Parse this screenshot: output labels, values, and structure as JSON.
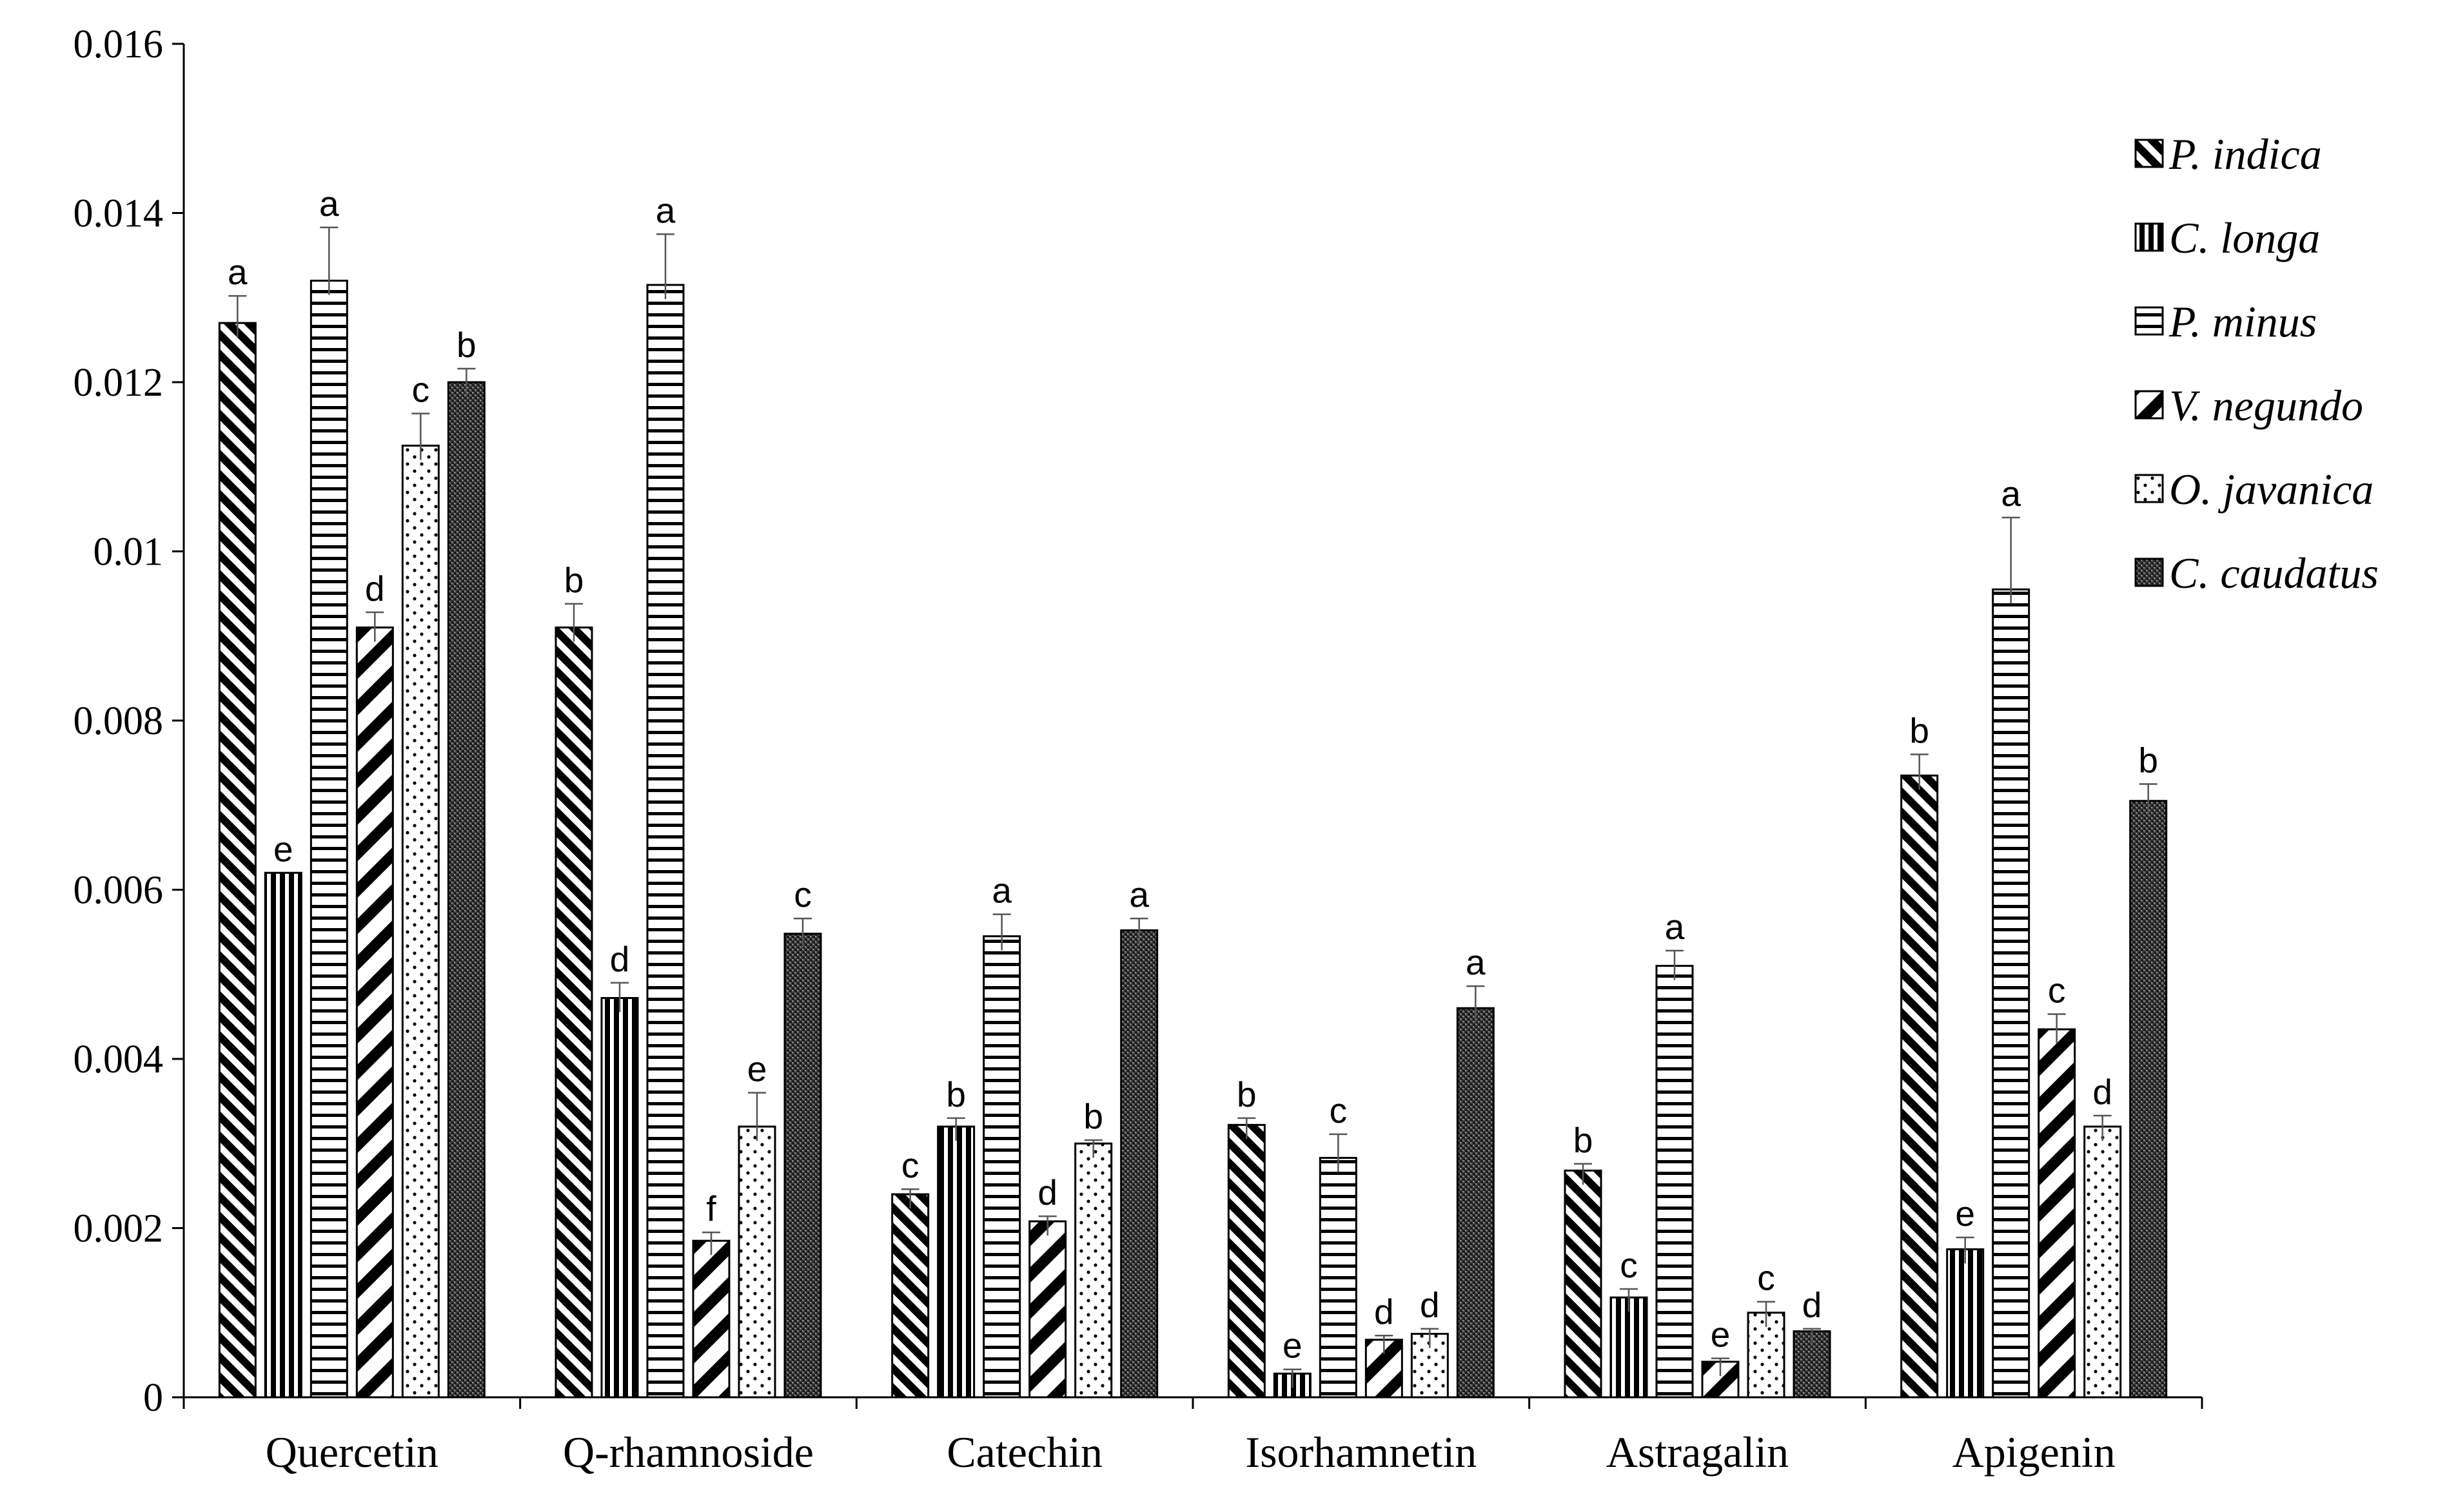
{
  "chart_data": {
    "type": "bar",
    "title": "",
    "xlabel": "",
    "ylabel": "",
    "ylim": [
      0,
      0.016
    ],
    "yticks": [
      "0",
      "0.002",
      "0.004",
      "0.006",
      "0.008",
      "0.01",
      "0.012",
      "0.014",
      "0.016"
    ],
    "categories": [
      "Quercetin",
      "Q-rhamnoside",
      "Catechin",
      "Isorhamnetin",
      "Astragalin",
      "Apigenin"
    ],
    "legend_position": "top-right",
    "series": [
      {
        "name": "P. indica",
        "pattern": "diag-back",
        "values": [
          0.0127,
          0.0091,
          0.0024,
          0.00322,
          0.00268,
          0.00735
        ],
        "errors": [
          0.00032,
          0.00028,
          6e-05,
          8e-05,
          8e-05,
          0.00025
        ],
        "letters": [
          "a",
          "b",
          "c",
          "b",
          "b",
          "b"
        ]
      },
      {
        "name": "C. longa",
        "pattern": "vertical",
        "values": [
          0.0062,
          0.00472,
          0.0032,
          0.00028,
          0.00118,
          0.00175
        ],
        "errors": [
          0,
          0.00018,
          0.0001,
          5e-05,
          0.0001,
          0.00014
        ],
        "letters": [
          "e",
          "d",
          "b",
          "e",
          "c",
          "e"
        ]
      },
      {
        "name": "P. minus",
        "pattern": "horizontal",
        "values": [
          0.0132,
          0.01315,
          0.00545,
          0.00283,
          0.0051,
          0.00955
        ],
        "errors": [
          0.00063,
          0.0006,
          0.00026,
          0.00028,
          0.00018,
          0.00085
        ],
        "letters": [
          "a",
          "a",
          "a",
          "c",
          "a",
          "a"
        ]
      },
      {
        "name": "V. negundo",
        "pattern": "diag-fwd",
        "values": [
          0.0091,
          0.00185,
          0.00208,
          0.00068,
          0.00042,
          0.00435
        ],
        "errors": [
          0.00018,
          0.0001,
          6e-05,
          5e-05,
          4e-05,
          0.00018
        ],
        "letters": [
          "d",
          "f",
          "d",
          "d",
          "e",
          "c"
        ]
      },
      {
        "name": "O. javanica",
        "pattern": "dots",
        "values": [
          0.01125,
          0.0032,
          0.003,
          0.00075,
          0.001,
          0.0032
        ],
        "errors": [
          0.00038,
          0.0004,
          4e-05,
          6e-05,
          0.00013,
          0.00013
        ],
        "letters": [
          "c",
          "e",
          "b",
          "d",
          "c",
          "d"
        ]
      },
      {
        "name": "C. caudatus",
        "pattern": "dense",
        "values": [
          0.012,
          0.00548,
          0.00552,
          0.0046,
          0.00078,
          0.00705
        ],
        "errors": [
          0.00016,
          0.00018,
          0.00014,
          0.00026,
          3e-05,
          0.0002
        ],
        "letters": [
          "b",
          "c",
          "a",
          "a",
          "d",
          "b"
        ]
      }
    ]
  }
}
